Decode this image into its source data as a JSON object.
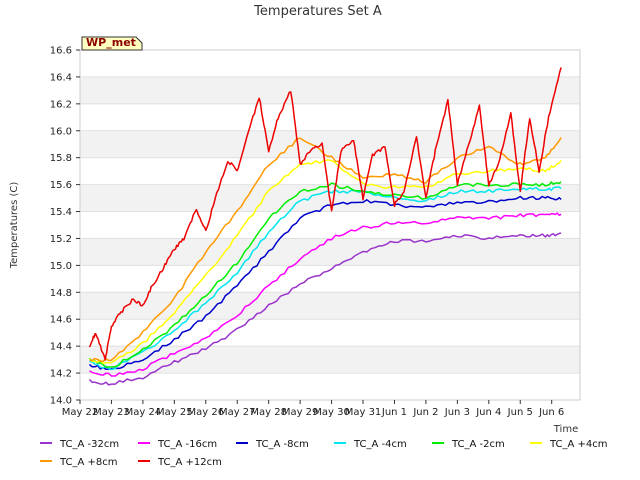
{
  "chart_data": {
    "type": "line",
    "title": "Temperatures Set A",
    "xlabel": "Time",
    "ylabel": "Temperatures (C)",
    "badge": "WP_met",
    "ylim": [
      14.0,
      16.6
    ],
    "yticks": [
      "14.0",
      "14.2",
      "14.4",
      "14.6",
      "14.8",
      "15.0",
      "15.2",
      "15.4",
      "15.6",
      "15.8",
      "16.0",
      "16.2",
      "16.4",
      "16.6"
    ],
    "xlim": [
      0,
      15.9
    ],
    "xticks": [
      "May 22",
      "May 23",
      "May 24",
      "May 25",
      "May 26",
      "May 27",
      "May 28",
      "May 29",
      "May 30",
      "May 31",
      "Jun 1",
      "Jun 2",
      "Jun 3",
      "Jun 4",
      "Jun 5",
      "Jun 6"
    ],
    "grid": "horizontal bands",
    "legend_position": "bottom",
    "series": [
      {
        "name": "TC_A -32cm",
        "color": "#9933cc",
        "x": [
          0.3,
          1,
          2,
          3,
          4,
          5,
          6,
          7,
          8,
          9,
          10,
          11,
          12,
          13,
          14,
          14.8,
          15.3
        ],
        "y": [
          14.14,
          14.12,
          14.17,
          14.28,
          14.38,
          14.52,
          14.7,
          14.86,
          14.98,
          15.1,
          15.18,
          15.18,
          15.22,
          15.2,
          15.22,
          15.22,
          15.24
        ]
      },
      {
        "name": "TC_A -16cm",
        "color": "#ff00ff",
        "x": [
          0.3,
          1,
          2,
          3,
          4,
          5,
          6,
          7,
          8,
          9,
          10,
          11,
          12,
          13,
          14,
          14.8,
          15.3
        ],
        "y": [
          14.22,
          14.18,
          14.23,
          14.35,
          14.46,
          14.63,
          14.85,
          15.05,
          15.2,
          15.28,
          15.32,
          15.32,
          15.35,
          15.35,
          15.37,
          15.38,
          15.38
        ]
      },
      {
        "name": "TC_A -8cm",
        "color": "#0000cc",
        "x": [
          0.3,
          1,
          2,
          3,
          4,
          5,
          6,
          7,
          8,
          9,
          10,
          11,
          12,
          13,
          14,
          14.8,
          15.3
        ],
        "y": [
          14.26,
          14.22,
          14.3,
          14.45,
          14.62,
          14.85,
          15.1,
          15.35,
          15.45,
          15.48,
          15.45,
          15.43,
          15.47,
          15.47,
          15.5,
          15.5,
          15.49
        ]
      },
      {
        "name": "TC_A -4cm",
        "color": "#00e5ee",
        "x": [
          0.3,
          1,
          2,
          3,
          4,
          5,
          6,
          7,
          8,
          9,
          10,
          11,
          12,
          13,
          14,
          14.8,
          15.3
        ],
        "y": [
          14.28,
          14.23,
          14.35,
          14.52,
          14.72,
          14.95,
          15.25,
          15.48,
          15.55,
          15.55,
          15.5,
          15.48,
          15.55,
          15.55,
          15.57,
          15.57,
          15.57
        ]
      },
      {
        "name": "TC_A -2cm",
        "color": "#00ee00",
        "x": [
          0.3,
          1,
          2,
          3,
          4,
          5,
          6,
          7,
          8,
          9,
          10,
          11,
          12,
          13,
          14,
          14.8,
          15.3
        ],
        "y": [
          14.3,
          14.24,
          14.37,
          14.55,
          14.78,
          15.02,
          15.35,
          15.55,
          15.6,
          15.55,
          15.52,
          15.5,
          15.6,
          15.6,
          15.6,
          15.6,
          15.62
        ]
      },
      {
        "name": "TC_A +4cm",
        "color": "#ffff00",
        "x": [
          0.3,
          1,
          2,
          3,
          4,
          5,
          6,
          7,
          8,
          9,
          10,
          11,
          12,
          13,
          14,
          14.8,
          15.3
        ],
        "y": [
          14.3,
          14.27,
          14.42,
          14.65,
          14.92,
          15.22,
          15.55,
          15.75,
          15.78,
          15.6,
          15.58,
          15.58,
          15.68,
          15.7,
          15.72,
          15.7,
          15.78
        ]
      },
      {
        "name": "TC_A +8cm",
        "color": "#ff9900",
        "x": [
          0.3,
          1,
          2,
          3,
          4,
          5,
          6,
          7,
          8,
          9,
          10,
          11,
          12,
          13,
          14,
          14.8,
          15.3
        ],
        "y": [
          14.3,
          14.3,
          14.5,
          14.75,
          15.1,
          15.4,
          15.75,
          15.95,
          15.8,
          15.65,
          15.68,
          15.62,
          15.8,
          15.88,
          15.75,
          15.8,
          15.95
        ]
      },
      {
        "name": "TC_A +12cm",
        "color": "#ee0000",
        "x": [
          0.3,
          0.5,
          0.8,
          1.0,
          1.3,
          1.7,
          2.0,
          2.3,
          2.7,
          3.0,
          3.3,
          3.7,
          4.0,
          4.3,
          4.7,
          5.0,
          5.3,
          5.7,
          6.0,
          6.3,
          6.7,
          7.0,
          7.3,
          7.7,
          8.0,
          8.3,
          8.7,
          9.0,
          9.3,
          9.7,
          10.0,
          10.3,
          10.7,
          11.0,
          11.3,
          11.7,
          12.0,
          12.3,
          12.7,
          13.0,
          13.3,
          13.7,
          14.0,
          14.3,
          14.6,
          14.9,
          15.3
        ],
        "y": [
          14.4,
          14.5,
          14.3,
          14.55,
          14.65,
          14.75,
          14.7,
          14.85,
          15.0,
          15.12,
          15.2,
          15.42,
          15.25,
          15.5,
          15.78,
          15.7,
          15.95,
          16.25,
          15.85,
          16.1,
          16.3,
          15.75,
          15.85,
          15.9,
          15.4,
          15.85,
          15.93,
          15.5,
          15.82,
          15.88,
          15.45,
          15.55,
          15.95,
          15.5,
          15.85,
          16.23,
          15.6,
          15.85,
          16.18,
          15.6,
          15.75,
          16.13,
          15.55,
          16.1,
          15.7,
          16.1,
          16.47
        ]
      }
    ]
  }
}
